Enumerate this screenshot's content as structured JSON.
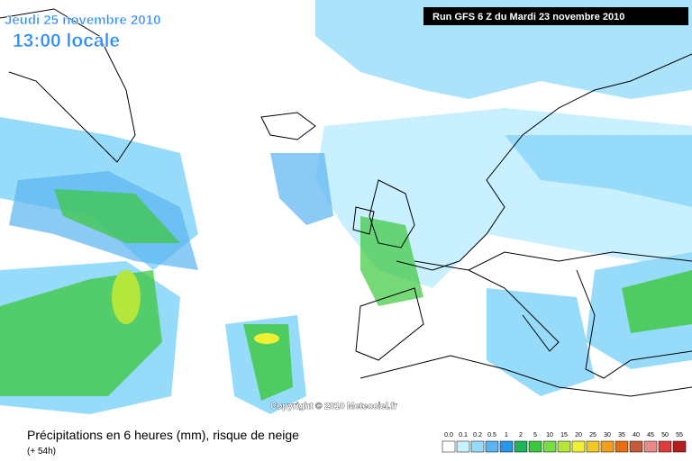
{
  "header": {
    "date": "Jeudi 25 novembre 2010",
    "time": "13:00 locale",
    "run": "Run GFS 6 Z du Mardi 23 novembre 2010"
  },
  "copyright": "Copyright © 2010 Meteociel.fr",
  "footer": {
    "title": "Précipitations en 6 heures (mm), risque de neige",
    "lead": "(+ 54h)"
  },
  "legend": {
    "labels": [
      "0.0",
      "0.1",
      "0.2",
      "0.5",
      "1",
      "2",
      "5",
      "10",
      "15",
      "20",
      "25",
      "30",
      "35",
      "40",
      "45",
      "50",
      "55"
    ],
    "colors": [
      "#ffffff",
      "#c8f0ff",
      "#96dcfa",
      "#5ab4f0",
      "#2896e6",
      "#1eb45a",
      "#3cc83c",
      "#78dc46",
      "#b4e63c",
      "#f0f032",
      "#f0c828",
      "#f0a01e",
      "#e66e14",
      "#c85a3c",
      "#e68c8c",
      "#dc3c3c",
      "#b41e1e"
    ]
  }
}
